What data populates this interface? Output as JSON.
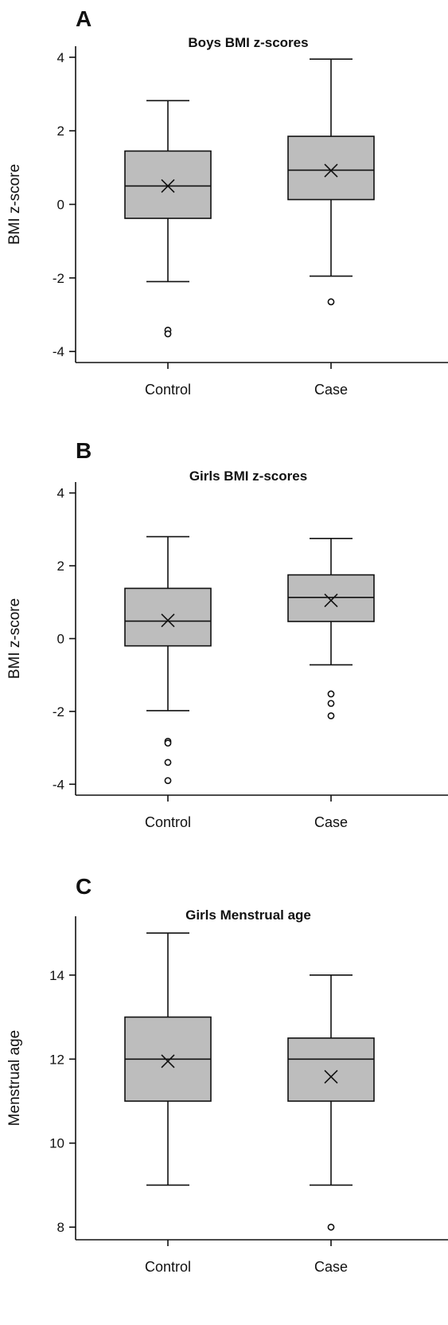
{
  "chart_data": [
    {
      "type": "box",
      "panel": "A",
      "title": "Boys BMI z-scores",
      "ylabel": "BMI z-score",
      "xlabel": "",
      "ylim": [
        -4.3,
        4.3
      ],
      "yticks": [
        4,
        2,
        0,
        -2,
        -4
      ],
      "ytick_labels": [
        "4",
        "2",
        "0",
        "-2",
        "-4"
      ],
      "grid": false,
      "categories": [
        "Control",
        "Case"
      ],
      "boxes": [
        {
          "category": "Control",
          "whisker_low": -2.1,
          "q1": -0.38,
          "median": 0.5,
          "q3": 1.45,
          "whisker_high": 2.82,
          "mean": 0.5,
          "outliers": [
            -3.42,
            -3.52
          ]
        },
        {
          "category": "Case",
          "whisker_low": -1.95,
          "q1": 0.13,
          "median": 0.93,
          "q3": 1.85,
          "whisker_high": 3.95,
          "mean": 0.92,
          "outliers": [
            -2.65
          ]
        }
      ]
    },
    {
      "type": "box",
      "panel": "B",
      "title": "Girls BMI z-scores",
      "ylabel": "BMI z-score",
      "xlabel": "",
      "ylim": [
        -4.3,
        4.3
      ],
      "yticks": [
        4,
        2,
        0,
        -2,
        -4
      ],
      "ytick_labels": [
        "4",
        "2",
        "0",
        "-2",
        "-4"
      ],
      "grid": false,
      "categories": [
        "Control",
        "Case"
      ],
      "boxes": [
        {
          "category": "Control",
          "whisker_low": -1.98,
          "q1": -0.2,
          "median": 0.48,
          "q3": 1.38,
          "whisker_high": 2.8,
          "mean": 0.5,
          "outliers": [
            -2.82,
            -2.87,
            -3.4,
            -3.9
          ]
        },
        {
          "category": "Case",
          "whisker_low": -0.72,
          "q1": 0.47,
          "median": 1.13,
          "q3": 1.75,
          "whisker_high": 2.75,
          "mean": 1.05,
          "outliers": [
            -1.52,
            -1.78,
            -2.12
          ]
        }
      ]
    },
    {
      "type": "box",
      "panel": "C",
      "title": "Girls Menstrual age",
      "ylabel": "Menstrual age",
      "xlabel": "",
      "ylim": [
        7.7,
        15.4
      ],
      "yticks": [
        14,
        12,
        10,
        8
      ],
      "ytick_labels": [
        "14",
        "12",
        "10",
        "8"
      ],
      "grid": false,
      "categories": [
        "Control",
        "Case"
      ],
      "boxes": [
        {
          "category": "Control",
          "whisker_low": 9,
          "q1": 11,
          "median": 12,
          "q3": 13,
          "whisker_high": 15,
          "mean": 11.95,
          "outliers": []
        },
        {
          "category": "Case",
          "whisker_low": 9,
          "q1": 11,
          "median": 12,
          "q3": 12.5,
          "whisker_high": 14,
          "mean": 11.58,
          "outliers": [
            8
          ]
        }
      ]
    }
  ]
}
